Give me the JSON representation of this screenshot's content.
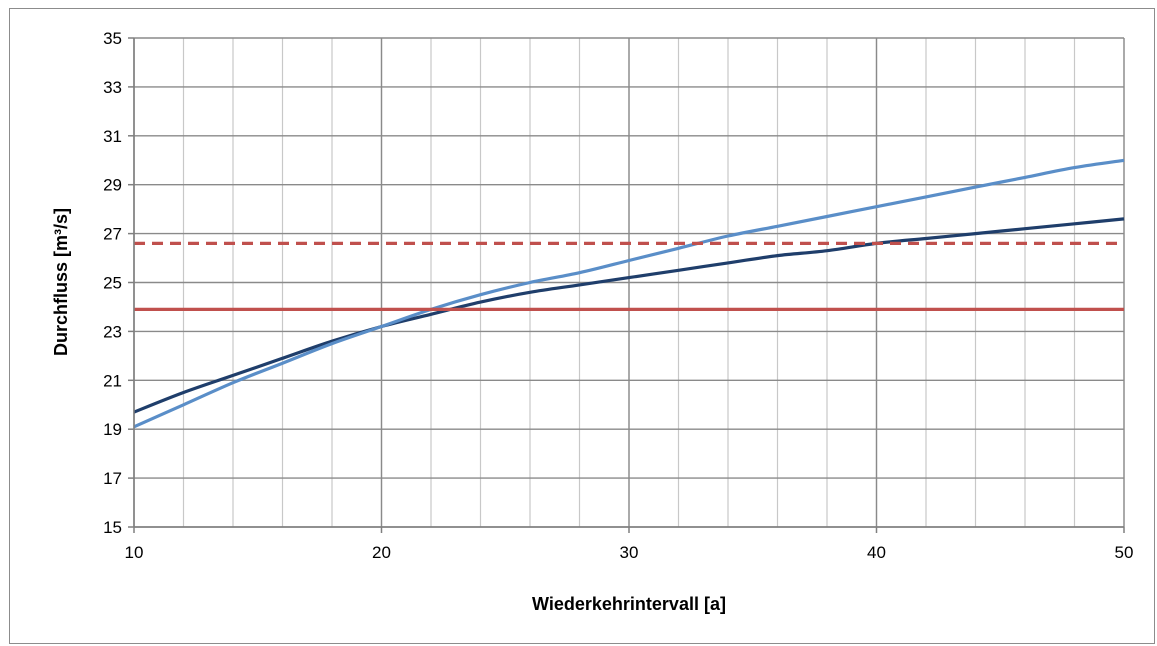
{
  "chart_data": {
    "type": "line",
    "title": "",
    "xlabel": "Wiederkehrintervall [a]",
    "ylabel": "Durchfluss [m³/s]",
    "xlim": [
      10,
      50
    ],
    "ylim": [
      15,
      35
    ],
    "x_ticks": [
      "10",
      "20",
      "30",
      "40",
      "50"
    ],
    "y_ticks": [
      "15",
      "17",
      "19",
      "21",
      "23",
      "25",
      "27",
      "29",
      "31",
      "33",
      "35"
    ],
    "x_minor_step": 2,
    "grid": true,
    "legend": "none",
    "series": [
      {
        "color": "#1f3e6b",
        "style": "solid",
        "x": [
          10,
          12,
          14,
          16,
          18,
          20,
          22,
          24,
          26,
          28,
          30,
          32,
          34,
          36,
          38,
          40,
          42,
          44,
          46,
          48,
          50
        ],
        "y": [
          19.7,
          20.5,
          21.2,
          21.9,
          22.6,
          23.2,
          23.7,
          24.2,
          24.6,
          24.9,
          25.2,
          25.5,
          25.8,
          26.1,
          26.3,
          26.6,
          26.8,
          27.0,
          27.2,
          27.4,
          27.6
        ]
      },
      {
        "color": "#5a8ec8",
        "style": "solid",
        "x": [
          10,
          12,
          14,
          16,
          18,
          20,
          22,
          24,
          26,
          28,
          30,
          32,
          34,
          36,
          38,
          40,
          42,
          44,
          46,
          48,
          50
        ],
        "y": [
          19.1,
          20.0,
          20.9,
          21.7,
          22.5,
          23.2,
          23.9,
          24.5,
          25.0,
          25.4,
          25.9,
          26.4,
          26.9,
          27.3,
          27.7,
          28.1,
          28.5,
          28.9,
          29.3,
          29.7,
          30.0
        ]
      },
      {
        "color": "#c0504d",
        "style": "solid",
        "x": [
          10,
          50
        ],
        "y": [
          23.9,
          23.9
        ]
      },
      {
        "color": "#c0504d",
        "style": "dashed",
        "x": [
          10,
          50
        ],
        "y": [
          26.6,
          26.6
        ]
      }
    ]
  }
}
